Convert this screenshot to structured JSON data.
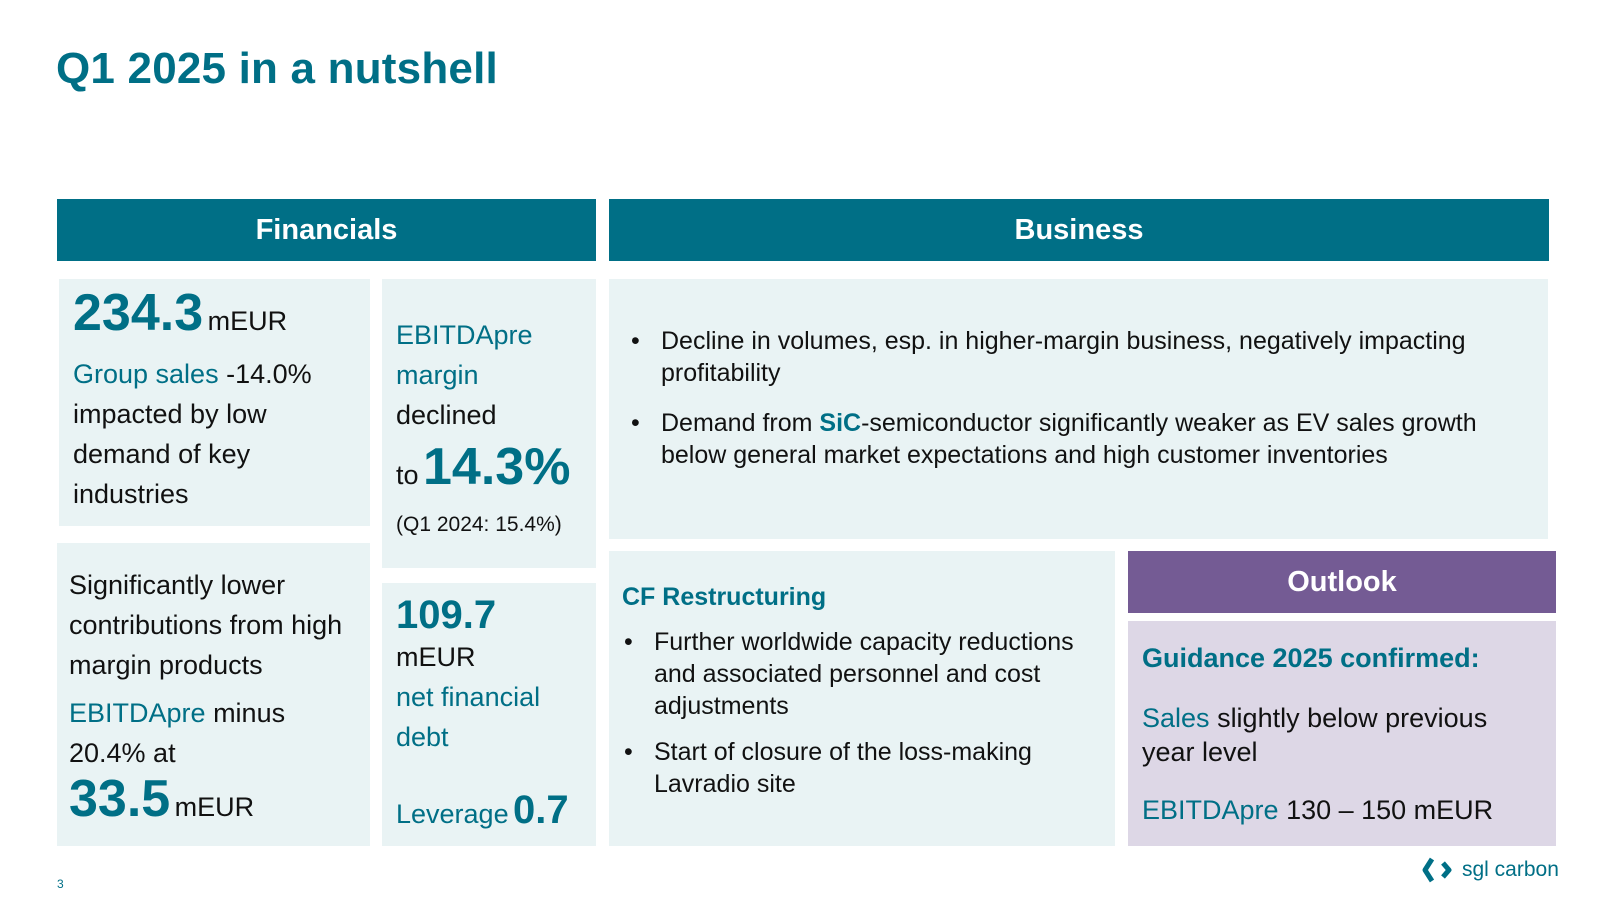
{
  "title": "Q1 2025 in a nutshell",
  "financials": {
    "header": "Financials",
    "sales": {
      "value": "234.3",
      "unit": "mEUR",
      "label": "Group sales",
      "change": "-14.0%",
      "text": "impacted by low demand of key industries"
    },
    "margin": {
      "label": "EBITDApre margin",
      "declined": "declined",
      "to": "to",
      "value": "14.3%",
      "prior": "(Q1 2024: 15.4%)"
    },
    "contributions": {
      "text": "Significantly lower contributions from high margin products",
      "label": "EBITDApre",
      "text2": "minus 20.4% at",
      "value": "33.5",
      "unit": "mEUR"
    },
    "debt": {
      "value": "109.7",
      "unit": "mEUR",
      "label": "net financial debt",
      "leverage_label": "Leverage",
      "leverage_value": "0.7"
    }
  },
  "business": {
    "header": "Business",
    "bullet1": "Decline in volumes, esp. in higher-margin business, negatively impacting profitability",
    "bullet2_pre": "Demand from ",
    "bullet2_highlight": "SiC",
    "bullet2_post": "-semiconductor significantly weaker as EV sales growth below general market expectations and high customer inventories",
    "restructuring": {
      "title": "CF Restructuring",
      "bullet1": "Further worldwide capacity reductions and associated personnel and cost adjustments",
      "bullet2": "Start of closure of the loss-making Lavradio site"
    }
  },
  "outlook": {
    "header": "Outlook",
    "headline": "Guidance 2025 confirmed:",
    "sales_label": "Sales",
    "sales_text": "slightly below previous year level",
    "ebitda_label": "EBITDApre",
    "ebitda_text": "130 – 150 mEUR"
  },
  "footer": {
    "page": "3",
    "logo": "sgl carbon"
  },
  "colors": {
    "teal": "#006f86",
    "light_box": "#e9f3f4",
    "purple": "#745b94",
    "lavender": "#ddd7e6"
  }
}
